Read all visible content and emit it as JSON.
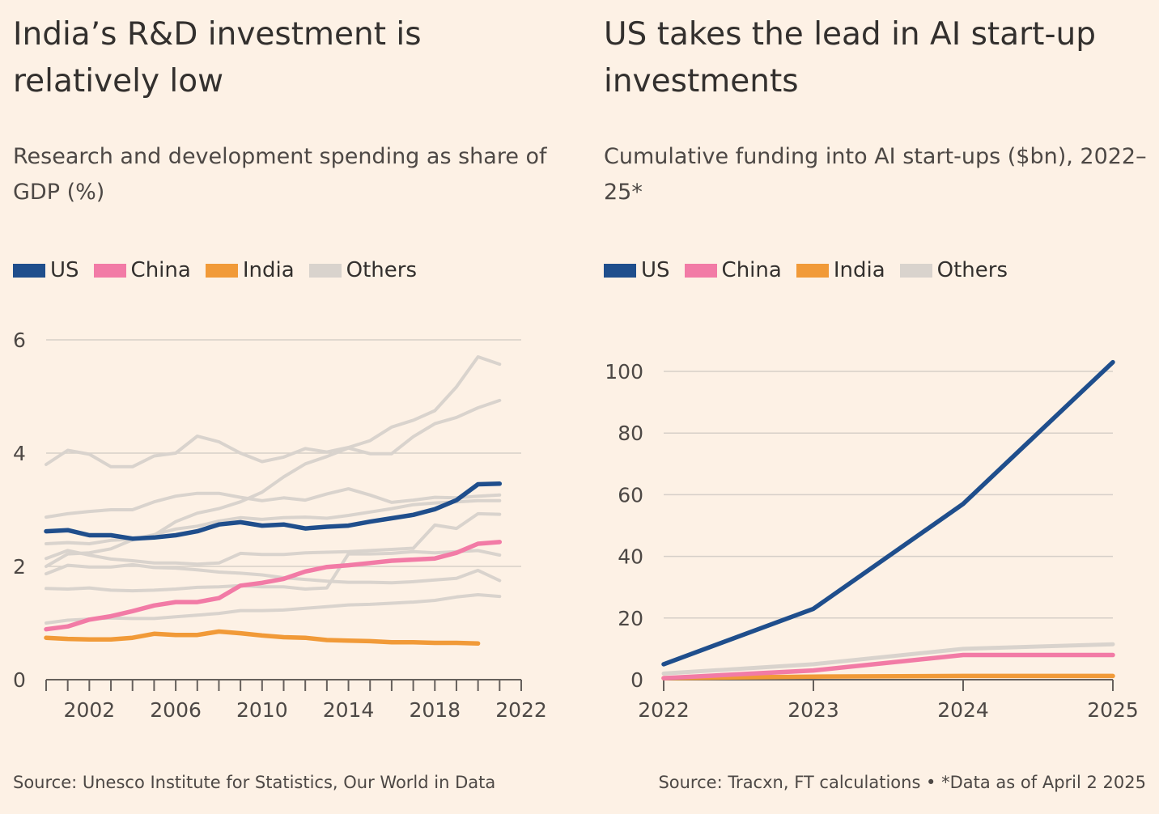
{
  "colors": {
    "US": "#1f4e8c",
    "China": "#f27ba6",
    "India": "#f19a38",
    "Others": "#d9d3cd",
    "grid": "#d6cfc8",
    "axis": "#66605c",
    "background": "#fdf1e5"
  },
  "left": {
    "title": "India’s R&D investment is relatively low",
    "subtitle": "Research and development spending as share of GDP (%)",
    "legend": [
      "US",
      "China",
      "India",
      "Others"
    ],
    "source": "Source: Unesco Institute for Statistics, Our World in Data"
  },
  "right": {
    "title": "US takes the lead in AI start-up investments",
    "subtitle": "Cumulative funding into AI start-ups ($bn), 2022–25*",
    "legend": [
      "US",
      "China",
      "India",
      "Others"
    ],
    "source": "Source: Tracxn, FT calculations • *Data as of April 2 2025"
  },
  "chart_data": [
    {
      "type": "line",
      "title": "India’s R&D investment is relatively low",
      "subtitle": "Research and development spending as share of GDP (%)",
      "ylim": [
        0,
        6
      ],
      "xlim": [
        2000,
        2022
      ],
      "yticks": [
        0,
        2,
        4,
        6
      ],
      "xticks": [
        2002,
        2006,
        2010,
        2014,
        2018,
        2022
      ],
      "grid": true,
      "legend_placement": "top-left",
      "series": [
        {
          "name": "US",
          "color": "#1f4e8c",
          "x": [
            2000,
            2001,
            2002,
            2003,
            2004,
            2005,
            2006,
            2007,
            2008,
            2009,
            2010,
            2011,
            2012,
            2013,
            2014,
            2015,
            2016,
            2017,
            2018,
            2019,
            2020,
            2021
          ],
          "values": [
            2.62,
            2.64,
            2.55,
            2.55,
            2.49,
            2.51,
            2.55,
            2.62,
            2.74,
            2.78,
            2.72,
            2.74,
            2.67,
            2.7,
            2.72,
            2.79,
            2.85,
            2.91,
            3.01,
            3.17,
            3.45,
            3.46
          ]
        },
        {
          "name": "China",
          "color": "#f27ba6",
          "x": [
            2000,
            2001,
            2002,
            2003,
            2004,
            2005,
            2006,
            2007,
            2008,
            2009,
            2010,
            2011,
            2012,
            2013,
            2014,
            2015,
            2016,
            2017,
            2018,
            2019,
            2020,
            2021
          ],
          "values": [
            0.89,
            0.94,
            1.06,
            1.12,
            1.21,
            1.31,
            1.37,
            1.37,
            1.44,
            1.66,
            1.71,
            1.78,
            1.91,
            1.99,
            2.02,
            2.06,
            2.1,
            2.12,
            2.14,
            2.24,
            2.4,
            2.43
          ]
        },
        {
          "name": "India",
          "color": "#f19a38",
          "x": [
            2000,
            2001,
            2002,
            2003,
            2004,
            2005,
            2006,
            2007,
            2008,
            2009,
            2010,
            2011,
            2012,
            2013,
            2014,
            2015,
            2016,
            2017,
            2018,
            2019,
            2020
          ],
          "values": [
            0.74,
            0.72,
            0.71,
            0.71,
            0.74,
            0.81,
            0.79,
            0.79,
            0.85,
            0.82,
            0.78,
            0.75,
            0.74,
            0.7,
            0.69,
            0.68,
            0.66,
            0.66,
            0.65,
            0.65,
            0.64
          ]
        },
        {
          "name": "Others",
          "color": "#d9d3cd",
          "x": [
            2000,
            2001,
            2002,
            2003,
            2004,
            2005,
            2006,
            2007,
            2008,
            2009,
            2010,
            2011,
            2012,
            2013,
            2014,
            2015,
            2016,
            2017,
            2018,
            2019,
            2020,
            2021
          ],
          "values": [
            3.8,
            4.05,
            3.98,
            3.76,
            3.76,
            3.95,
            4.0,
            4.3,
            4.2,
            4.0,
            3.85,
            3.93,
            4.08,
            4.02,
            4.1,
            4.22,
            4.46,
            4.58,
            4.75,
            5.17,
            5.7,
            5.57
          ]
        },
        {
          "name": "Others",
          "color": "#d9d3cd",
          "x": [
            2000,
            2001,
            2002,
            2003,
            2004,
            2005,
            2006,
            2007,
            2008,
            2009,
            2010,
            2011,
            2012,
            2013,
            2014,
            2015,
            2016,
            2017,
            2018,
            2019,
            2020,
            2021
          ],
          "values": [
            2.0,
            2.22,
            2.24,
            2.31,
            2.47,
            2.55,
            2.79,
            2.94,
            3.02,
            3.14,
            3.31,
            3.58,
            3.81,
            3.94,
            4.09,
            3.99,
            3.99,
            4.29,
            4.52,
            4.63,
            4.8,
            4.93
          ]
        },
        {
          "name": "Others",
          "color": "#d9d3cd",
          "x": [
            2000,
            2001,
            2002,
            2003,
            2004,
            2005,
            2006,
            2007,
            2008,
            2009,
            2010,
            2011,
            2012,
            2013,
            2014,
            2015,
            2016,
            2017,
            2018,
            2019,
            2020,
            2021
          ],
          "values": [
            2.87,
            2.93,
            2.97,
            3.0,
            3.0,
            3.14,
            3.24,
            3.29,
            3.29,
            3.22,
            3.16,
            3.21,
            3.17,
            3.28,
            3.37,
            3.26,
            3.13,
            3.17,
            3.22,
            3.21,
            3.24,
            3.26
          ]
        },
        {
          "name": "Others",
          "color": "#d9d3cd",
          "x": [
            2000,
            2001,
            2002,
            2003,
            2004,
            2005,
            2006,
            2007,
            2008,
            2009,
            2010,
            2011,
            2012,
            2013,
            2014,
            2015,
            2016,
            2017,
            2018,
            2019,
            2020,
            2021
          ],
          "values": [
            2.4,
            2.42,
            2.4,
            2.46,
            2.48,
            2.56,
            2.66,
            2.71,
            2.8,
            2.86,
            2.83,
            2.86,
            2.87,
            2.85,
            2.9,
            2.96,
            3.02,
            3.09,
            3.12,
            3.14,
            3.16,
            3.16
          ]
        },
        {
          "name": "Others",
          "color": "#d9d3cd",
          "x": [
            2000,
            2001,
            2002,
            2003,
            2004,
            2005,
            2006,
            2007,
            2008,
            2009,
            2010,
            2011,
            2012,
            2013,
            2014,
            2015,
            2016,
            2017,
            2018,
            2019,
            2020,
            2021
          ],
          "values": [
            2.14,
            2.28,
            2.2,
            2.13,
            2.1,
            2.06,
            2.06,
            2.04,
            2.06,
            2.23,
            2.21,
            2.21,
            2.24,
            2.25,
            2.26,
            2.28,
            2.3,
            2.32,
            2.73,
            2.67,
            2.93,
            2.92
          ]
        },
        {
          "name": "Others",
          "color": "#d9d3cd",
          "x": [
            2000,
            2001,
            2002,
            2003,
            2004,
            2005,
            2006,
            2007,
            2008,
            2009,
            2010,
            2011,
            2012,
            2013,
            2014,
            2015,
            2016,
            2017,
            2018,
            2019,
            2020,
            2021
          ],
          "values": [
            1.87,
            2.02,
            1.99,
            1.99,
            2.03,
            1.98,
            1.97,
            1.94,
            1.9,
            1.88,
            1.85,
            1.8,
            1.77,
            1.74,
            1.72,
            1.72,
            1.71,
            1.73,
            1.76,
            1.79,
            1.93,
            1.75
          ]
        },
        {
          "name": "Others",
          "color": "#d9d3cd",
          "x": [
            2000,
            2001,
            2002,
            2003,
            2004,
            2005,
            2006,
            2007,
            2008,
            2009,
            2010,
            2011,
            2012,
            2013,
            2014,
            2015,
            2016,
            2017,
            2018,
            2019,
            2020,
            2021
          ],
          "values": [
            1.61,
            1.6,
            1.62,
            1.58,
            1.57,
            1.58,
            1.6,
            1.63,
            1.64,
            1.66,
            1.64,
            1.64,
            1.6,
            1.62,
            2.22,
            2.22,
            2.23,
            2.26,
            2.24,
            2.26,
            2.28,
            2.2
          ]
        },
        {
          "name": "Others",
          "color": "#d9d3cd",
          "x": [
            2000,
            2001,
            2002,
            2003,
            2004,
            2005,
            2006,
            2007,
            2008,
            2009,
            2010,
            2011,
            2012,
            2013,
            2014,
            2015,
            2016,
            2017,
            2018,
            2019,
            2020,
            2021
          ],
          "values": [
            1.0,
            1.05,
            1.07,
            1.09,
            1.08,
            1.08,
            1.11,
            1.14,
            1.17,
            1.22,
            1.22,
            1.23,
            1.26,
            1.29,
            1.32,
            1.33,
            1.35,
            1.37,
            1.4,
            1.46,
            1.5,
            1.47
          ]
        }
      ]
    },
    {
      "type": "line",
      "title": "US takes the lead in AI start-up investments",
      "subtitle": "Cumulative funding into AI start-ups ($bn), 2022–25*",
      "ylim": [
        0,
        100
      ],
      "xlim": [
        2022,
        2025
      ],
      "yticks": [
        0,
        20,
        40,
        60,
        80,
        100
      ],
      "xticks": [
        2022,
        2023,
        2024,
        2025
      ],
      "grid": true,
      "legend_placement": "top-left",
      "series": [
        {
          "name": "US",
          "color": "#1f4e8c",
          "x": [
            2022,
            2023,
            2024,
            2025
          ],
          "values": [
            5,
            23,
            57,
            103
          ]
        },
        {
          "name": "China",
          "color": "#f27ba6",
          "x": [
            2022,
            2023,
            2024,
            2025
          ],
          "values": [
            0.5,
            3,
            8,
            8
          ]
        },
        {
          "name": "India",
          "color": "#f19a38",
          "x": [
            2022,
            2023,
            2024,
            2025
          ],
          "values": [
            0.5,
            1,
            1.2,
            1.2
          ]
        },
        {
          "name": "Others",
          "color": "#d9d3cd",
          "x": [
            2022,
            2023,
            2024,
            2025
          ],
          "values": [
            2,
            5,
            10,
            11.5
          ]
        }
      ]
    }
  ]
}
